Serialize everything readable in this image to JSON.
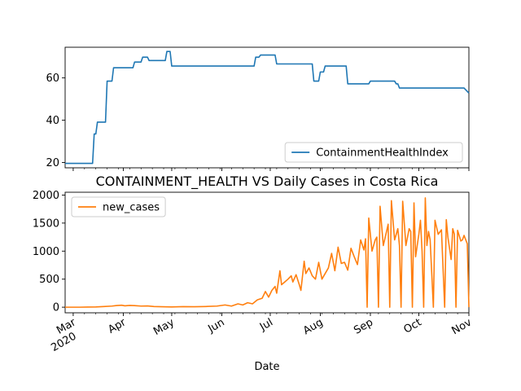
{
  "chart_data": [
    {
      "type": "line",
      "title": "",
      "xlabel": "",
      "ylabel": "",
      "xlim": [
        "2020-02-25",
        "2020-11-01"
      ],
      "ylim": [
        17.5,
        74.5
      ],
      "y_ticks": [
        20,
        40,
        60
      ],
      "grid": false,
      "legend": "lower-right",
      "series": [
        {
          "name": "ContainmentHealthIndex",
          "color": "#1f77b4",
          "step": true,
          "points": [
            [
              "2020-02-25",
              19.6
            ],
            [
              "2020-03-13",
              19.6
            ],
            [
              "2020-03-14",
              33.5
            ],
            [
              "2020-03-15",
              33.5
            ],
            [
              "2020-03-16",
              39.1
            ],
            [
              "2020-03-21",
              39.1
            ],
            [
              "2020-03-22",
              58.5
            ],
            [
              "2020-03-25",
              58.5
            ],
            [
              "2020-03-26",
              64.8
            ],
            [
              "2020-04-07",
              64.8
            ],
            [
              "2020-04-08",
              67.5
            ],
            [
              "2020-04-12",
              67.5
            ],
            [
              "2020-04-13",
              69.8
            ],
            [
              "2020-04-16",
              69.8
            ],
            [
              "2020-04-17",
              68.2
            ],
            [
              "2020-04-27",
              68.2
            ],
            [
              "2020-04-28",
              72.5
            ],
            [
              "2020-04-30",
              72.5
            ],
            [
              "2020-05-01",
              65.6
            ],
            [
              "2020-06-21",
              65.6
            ],
            [
              "2020-06-22",
              69.8
            ],
            [
              "2020-06-24",
              69.8
            ],
            [
              "2020-06-25",
              70.8
            ],
            [
              "2020-07-04",
              70.8
            ],
            [
              "2020-07-05",
              66.6
            ],
            [
              "2020-07-27",
              66.6
            ],
            [
              "2020-07-28",
              58.5
            ],
            [
              "2020-07-31",
              58.5
            ],
            [
              "2020-08-01",
              62.8
            ],
            [
              "2020-08-03",
              62.8
            ],
            [
              "2020-08-04",
              65.6
            ],
            [
              "2020-08-17",
              65.6
            ],
            [
              "2020-08-18",
              57.2
            ],
            [
              "2020-08-31",
              57.2
            ],
            [
              "2020-09-01",
              58.5
            ],
            [
              "2020-09-16",
              58.5
            ],
            [
              "2020-09-17",
              57.2
            ],
            [
              "2020-09-18",
              57.2
            ],
            [
              "2020-09-19",
              55.2
            ],
            [
              "2020-10-29",
              55.2
            ],
            [
              "2020-11-01",
              52.8
            ]
          ]
        }
      ]
    },
    {
      "type": "line",
      "title": "CONTAINMENT_HEALTH VS Daily Cases in Costa Rica",
      "xlabel": "Date",
      "ylabel": "",
      "xlim": [
        "2020-02-25",
        "2020-11-01"
      ],
      "ylim": [
        -100,
        2050
      ],
      "y_ticks": [
        0,
        500,
        1000,
        1500,
        2000
      ],
      "x_ticks": [
        "2020-03-01",
        "2020-04-01",
        "2020-05-01",
        "2020-06-01",
        "2020-07-01",
        "2020-08-01",
        "2020-09-01",
        "2020-10-01",
        "2020-11-01"
      ],
      "x_tick_labels": [
        [
          "Mar",
          "2020"
        ],
        [
          "Apr"
        ],
        [
          "May"
        ],
        [
          "Jun"
        ],
        [
          "Jul"
        ],
        [
          "Aug"
        ],
        [
          "Sep"
        ],
        [
          "Oct"
        ],
        [
          "Nov"
        ]
      ],
      "grid": false,
      "legend": "upper-left",
      "series": [
        {
          "name": "new_cases",
          "color": "#ff7f0e",
          "points": [
            [
              "2020-02-25",
              0
            ],
            [
              "2020-03-05",
              0
            ],
            [
              "2020-03-10",
              2
            ],
            [
              "2020-03-15",
              5
            ],
            [
              "2020-03-20",
              12
            ],
            [
              "2020-03-25",
              20
            ],
            [
              "2020-03-28",
              30
            ],
            [
              "2020-03-31",
              35
            ],
            [
              "2020-04-02",
              25
            ],
            [
              "2020-04-05",
              32
            ],
            [
              "2020-04-08",
              28
            ],
            [
              "2020-04-12",
              20
            ],
            [
              "2020-04-16",
              22
            ],
            [
              "2020-04-20",
              12
            ],
            [
              "2020-04-25",
              8
            ],
            [
              "2020-05-01",
              5
            ],
            [
              "2020-05-08",
              10
            ],
            [
              "2020-05-15",
              8
            ],
            [
              "2020-05-22",
              12
            ],
            [
              "2020-05-29",
              20
            ],
            [
              "2020-06-03",
              40
            ],
            [
              "2020-06-07",
              20
            ],
            [
              "2020-06-11",
              60
            ],
            [
              "2020-06-14",
              40
            ],
            [
              "2020-06-17",
              80
            ],
            [
              "2020-06-20",
              60
            ],
            [
              "2020-06-23",
              130
            ],
            [
              "2020-06-26",
              160
            ],
            [
              "2020-06-28",
              280
            ],
            [
              "2020-06-30",
              180
            ],
            [
              "2020-07-02",
              300
            ],
            [
              "2020-07-04",
              370
            ],
            [
              "2020-07-05",
              250
            ],
            [
              "2020-07-07",
              650
            ],
            [
              "2020-07-08",
              400
            ],
            [
              "2020-07-10",
              450
            ],
            [
              "2020-07-12",
              500
            ],
            [
              "2020-07-14",
              560
            ],
            [
              "2020-07-15",
              450
            ],
            [
              "2020-07-17",
              580
            ],
            [
              "2020-07-19",
              400
            ],
            [
              "2020-07-20",
              300
            ],
            [
              "2020-07-22",
              820
            ],
            [
              "2020-07-23",
              600
            ],
            [
              "2020-07-25",
              700
            ],
            [
              "2020-07-27",
              560
            ],
            [
              "2020-07-29",
              500
            ],
            [
              "2020-07-31",
              800
            ],
            [
              "2020-08-02",
              500
            ],
            [
              "2020-08-04",
              600
            ],
            [
              "2020-08-06",
              700
            ],
            [
              "2020-08-08",
              960
            ],
            [
              "2020-08-10",
              650
            ],
            [
              "2020-08-12",
              1070
            ],
            [
              "2020-08-14",
              780
            ],
            [
              "2020-08-16",
              800
            ],
            [
              "2020-08-18",
              660
            ],
            [
              "2020-08-20",
              1050
            ],
            [
              "2020-08-22",
              900
            ],
            [
              "2020-08-24",
              760
            ],
            [
              "2020-08-26",
              1200
            ],
            [
              "2020-08-28",
              1020
            ],
            [
              "2020-08-29",
              1220
            ],
            [
              "2020-08-30",
              0
            ],
            [
              "2020-08-31",
              1590
            ],
            [
              "2020-09-02",
              1000
            ],
            [
              "2020-09-04",
              1200
            ],
            [
              "2020-09-05",
              1250
            ],
            [
              "2020-09-06",
              0
            ],
            [
              "2020-09-07",
              1800
            ],
            [
              "2020-09-09",
              1100
            ],
            [
              "2020-09-11",
              1350
            ],
            [
              "2020-09-12",
              1480
            ],
            [
              "2020-09-13",
              0
            ],
            [
              "2020-09-14",
              1900
            ],
            [
              "2020-09-16",
              1200
            ],
            [
              "2020-09-18",
              1400
            ],
            [
              "2020-09-19",
              1100
            ],
            [
              "2020-09-20",
              0
            ],
            [
              "2020-09-21",
              1890
            ],
            [
              "2020-09-23",
              1100
            ],
            [
              "2020-09-25",
              1400
            ],
            [
              "2020-09-26",
              1350
            ],
            [
              "2020-09-27",
              0
            ],
            [
              "2020-09-28",
              1860
            ],
            [
              "2020-09-29",
              900
            ],
            [
              "2020-10-01",
              1300
            ],
            [
              "2020-10-02",
              1550
            ],
            [
              "2020-10-03",
              1000
            ],
            [
              "2020-10-04",
              0
            ],
            [
              "2020-10-05",
              1950
            ],
            [
              "2020-10-06",
              1100
            ],
            [
              "2020-10-07",
              1350
            ],
            [
              "2020-10-08",
              1200
            ],
            [
              "2020-10-10",
              0
            ],
            [
              "2020-10-11",
              1550
            ],
            [
              "2020-10-13",
              1300
            ],
            [
              "2020-10-15",
              1380
            ],
            [
              "2020-10-17",
              0
            ],
            [
              "2020-10-18",
              1560
            ],
            [
              "2020-10-19",
              1250
            ],
            [
              "2020-10-21",
              850
            ],
            [
              "2020-10-22",
              1400
            ],
            [
              "2020-10-23",
              1300
            ],
            [
              "2020-10-24",
              0
            ],
            [
              "2020-10-25",
              1370
            ],
            [
              "2020-10-27",
              1180
            ],
            [
              "2020-10-28",
              1200
            ],
            [
              "2020-10-29",
              1280
            ],
            [
              "2020-10-31",
              1130
            ],
            [
              "2020-11-01",
              0
            ]
          ]
        }
      ]
    }
  ]
}
